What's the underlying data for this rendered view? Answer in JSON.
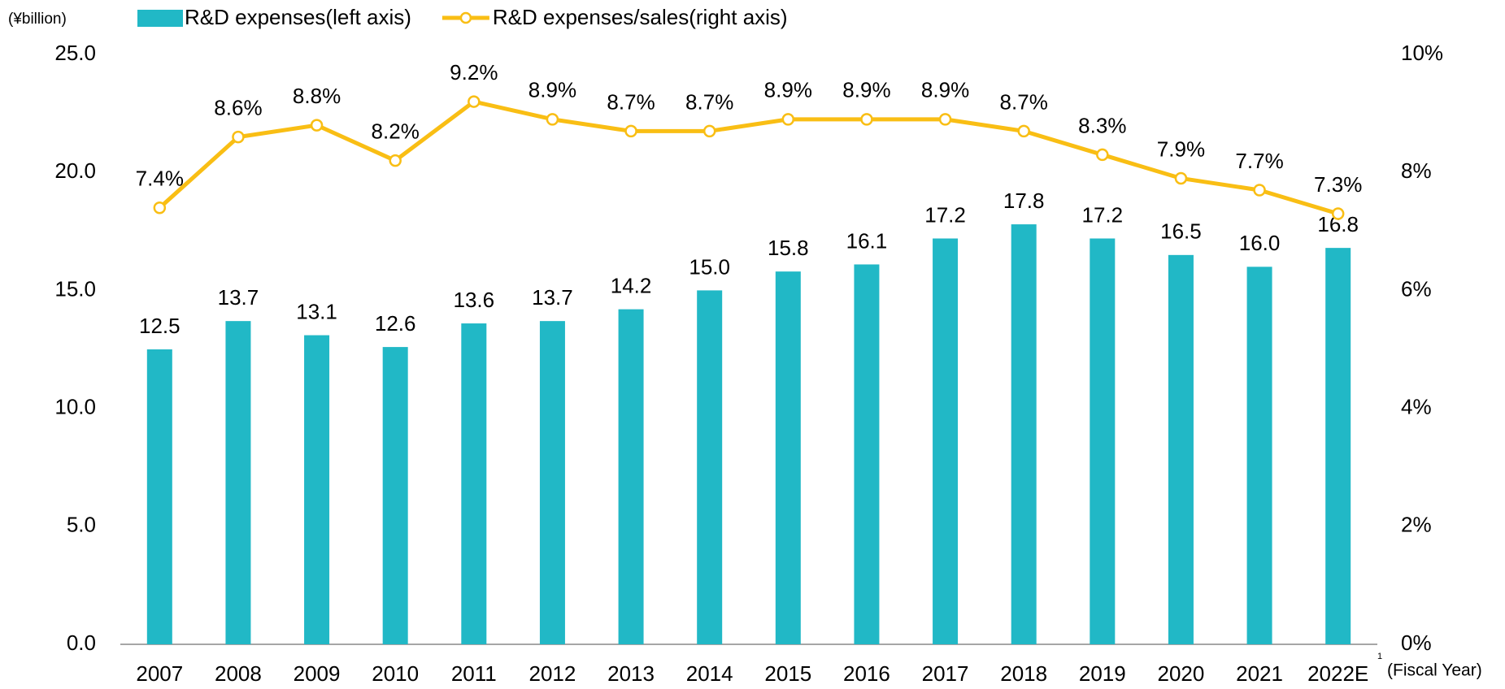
{
  "chart_data": {
    "type": "bar_line",
    "unit_label": "(¥billion)",
    "x_label": "(Fiscal Year)",
    "footnote_mark": "1",
    "categories": [
      "2007",
      "2008",
      "2009",
      "2010",
      "2011",
      "2012",
      "2013",
      "2014",
      "2015",
      "2016",
      "2017",
      "2018",
      "2019",
      "2020",
      "2021",
      "2022E"
    ],
    "series": [
      {
        "name": "R&D expenses(left axis)",
        "color": "#21b8c6",
        "type": "bar",
        "values": [
          12.5,
          13.7,
          13.1,
          12.6,
          13.6,
          13.7,
          14.2,
          15.0,
          15.8,
          16.1,
          17.2,
          17.8,
          17.2,
          16.5,
          16.0,
          16.8
        ],
        "value_labels": [
          "12.5",
          "13.7",
          "13.1",
          "12.6",
          "13.6",
          "13.7",
          "14.2",
          "15.0",
          "15.8",
          "16.1",
          "17.2",
          "17.8",
          "17.2",
          "16.5",
          "16.0",
          "16.8"
        ]
      },
      {
        "name": "R&D expenses/sales(right axis)",
        "color": "#f9be14",
        "type": "line",
        "axis": "y2",
        "values": [
          7.4,
          8.6,
          8.8,
          8.2,
          9.2,
          8.9,
          8.7,
          8.7,
          8.9,
          8.9,
          8.9,
          8.7,
          8.3,
          7.9,
          7.7,
          7.3
        ],
        "value_labels": [
          "7.4%",
          "8.6%",
          "8.8%",
          "8.2%",
          "9.2%",
          "8.9%",
          "8.7%",
          "8.7%",
          "8.9%",
          "8.9%",
          "8.9%",
          "8.7%",
          "8.3%",
          "7.9%",
          "7.7%",
          "7.3%"
        ]
      }
    ],
    "ylim": [
      0,
      25
    ],
    "yticks": [
      {
        "value": 0,
        "label": "0.0"
      },
      {
        "value": 5,
        "label": "5.0"
      },
      {
        "value": 10,
        "label": "10.0"
      },
      {
        "value": 15,
        "label": "15.0"
      },
      {
        "value": 20,
        "label": "20.0"
      },
      {
        "value": 25,
        "label": "25.0"
      }
    ],
    "y2lim": [
      0,
      10
    ],
    "y2ticks": [
      {
        "value": 0,
        "label": "0%"
      },
      {
        "value": 2,
        "label": "2%"
      },
      {
        "value": 4,
        "label": "4%"
      },
      {
        "value": 6,
        "label": "6%"
      },
      {
        "value": 8,
        "label": "8%"
      },
      {
        "value": 10,
        "label": "10%"
      }
    ],
    "grid": false
  }
}
